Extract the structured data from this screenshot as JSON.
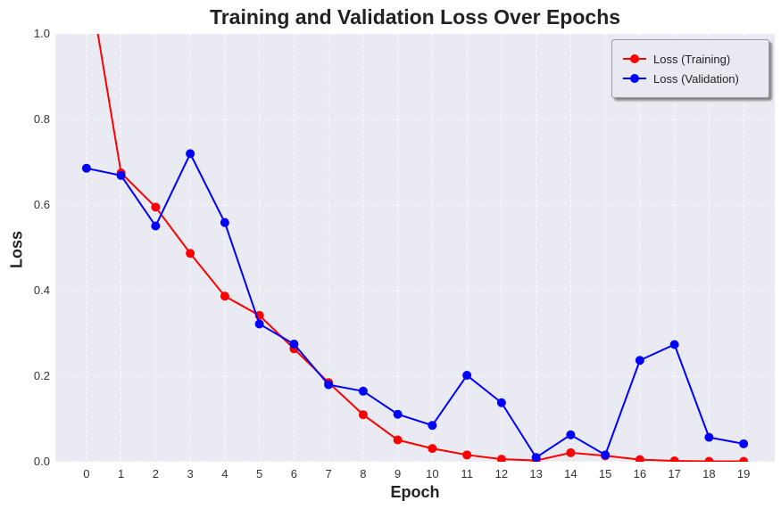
{
  "chart_data": {
    "type": "line",
    "title": "Training and Validation Loss Over Epochs",
    "xlabel": "Epoch",
    "ylabel": "Loss",
    "x": [
      0,
      1,
      2,
      3,
      4,
      5,
      6,
      7,
      8,
      9,
      10,
      11,
      12,
      13,
      14,
      15,
      16,
      17,
      18,
      19
    ],
    "xlim": [
      -0.9,
      19.9
    ],
    "ylim": [
      0,
      1.0
    ],
    "yticks": [
      0.0,
      0.2,
      0.4,
      0.6,
      0.8,
      1.0
    ],
    "grid": true,
    "legend_position": "top-right",
    "series": [
      {
        "name": "Loss (Training)",
        "color": "#ff0000",
        "values": [
          1.16,
          0.675,
          0.595,
          0.487,
          0.387,
          0.342,
          0.264,
          0.185,
          0.11,
          0.051,
          0.031,
          0.016,
          0.006,
          0.003,
          0.021,
          0.014,
          0.005,
          0.002,
          0.001,
          0.001
        ]
      },
      {
        "name": "Loss (Validation)",
        "color": "#0000ff",
        "values": [
          0.686,
          0.669,
          0.551,
          0.72,
          0.559,
          0.322,
          0.275,
          0.18,
          0.165,
          0.111,
          0.085,
          0.202,
          0.138,
          0.01,
          0.063,
          0.016,
          0.237,
          0.274,
          0.057,
          0.042
        ]
      }
    ]
  }
}
